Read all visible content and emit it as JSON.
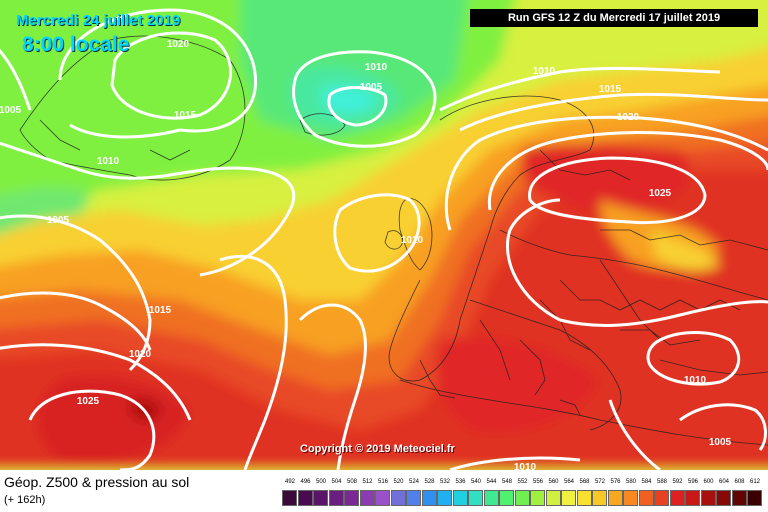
{
  "header": {
    "date": "Mercredi 24 juillet 2019",
    "time": "8:00 locale",
    "run": "Run GFS 12 Z du Mercredi 17 juillet 2019"
  },
  "copyright": "Copyright © 2019 Meteociel.fr",
  "legend": {
    "title": "Géop. Z500 & pression au sol",
    "subtitle": "(+ 162h)",
    "scale": [
      {
        "label": "492",
        "color": "#3a0a3a"
      },
      {
        "label": "496",
        "color": "#4a0a50"
      },
      {
        "label": "500",
        "color": "#5a1468"
      },
      {
        "label": "504",
        "color": "#6a1e7e"
      },
      {
        "label": "508",
        "color": "#7a2894"
      },
      {
        "label": "512",
        "color": "#8a3cb0"
      },
      {
        "label": "516",
        "color": "#9a50c8"
      },
      {
        "label": "520",
        "color": "#7070d8"
      },
      {
        "label": "524",
        "color": "#5080e8"
      },
      {
        "label": "528",
        "color": "#3090f0"
      },
      {
        "label": "532",
        "color": "#20b0f0"
      },
      {
        "label": "536",
        "color": "#20d0e0"
      },
      {
        "label": "540",
        "color": "#30e0c0"
      },
      {
        "label": "544",
        "color": "#40e890"
      },
      {
        "label": "548",
        "color": "#50f070"
      },
      {
        "label": "552",
        "color": "#70f050"
      },
      {
        "label": "556",
        "color": "#a0f040"
      },
      {
        "label": "560",
        "color": "#d0f040"
      },
      {
        "label": "564",
        "color": "#f0f040"
      },
      {
        "label": "568",
        "color": "#f8e030"
      },
      {
        "label": "572",
        "color": "#f8c828"
      },
      {
        "label": "576",
        "color": "#f8a820"
      },
      {
        "label": "580",
        "color": "#f88820"
      },
      {
        "label": "584",
        "color": "#f06020"
      },
      {
        "label": "588",
        "color": "#e84020"
      },
      {
        "label": "592",
        "color": "#e02020"
      },
      {
        "label": "596",
        "color": "#c81818"
      },
      {
        "label": "600",
        "color": "#a81010"
      },
      {
        "label": "604",
        "color": "#880808"
      },
      {
        "label": "608",
        "color": "#600404"
      },
      {
        "label": "612",
        "color": "#380000"
      }
    ]
  },
  "isobars": [
    {
      "label": "1020"
    },
    {
      "label": "1015"
    },
    {
      "label": "1010"
    },
    {
      "label": "1005"
    },
    {
      "label": "1005"
    },
    {
      "label": "1010"
    },
    {
      "label": "1010"
    },
    {
      "label": "1015"
    },
    {
      "label": "1020"
    },
    {
      "label": "1025"
    },
    {
      "label": "1005"
    },
    {
      "label": "1010"
    },
    {
      "label": "1015"
    },
    {
      "label": "1020"
    },
    {
      "label": "1025"
    },
    {
      "label": "1010"
    },
    {
      "label": "1005"
    },
    {
      "label": "1010"
    }
  ],
  "colors": {
    "isobar": "#ffffff",
    "title": "#00d8ff"
  }
}
